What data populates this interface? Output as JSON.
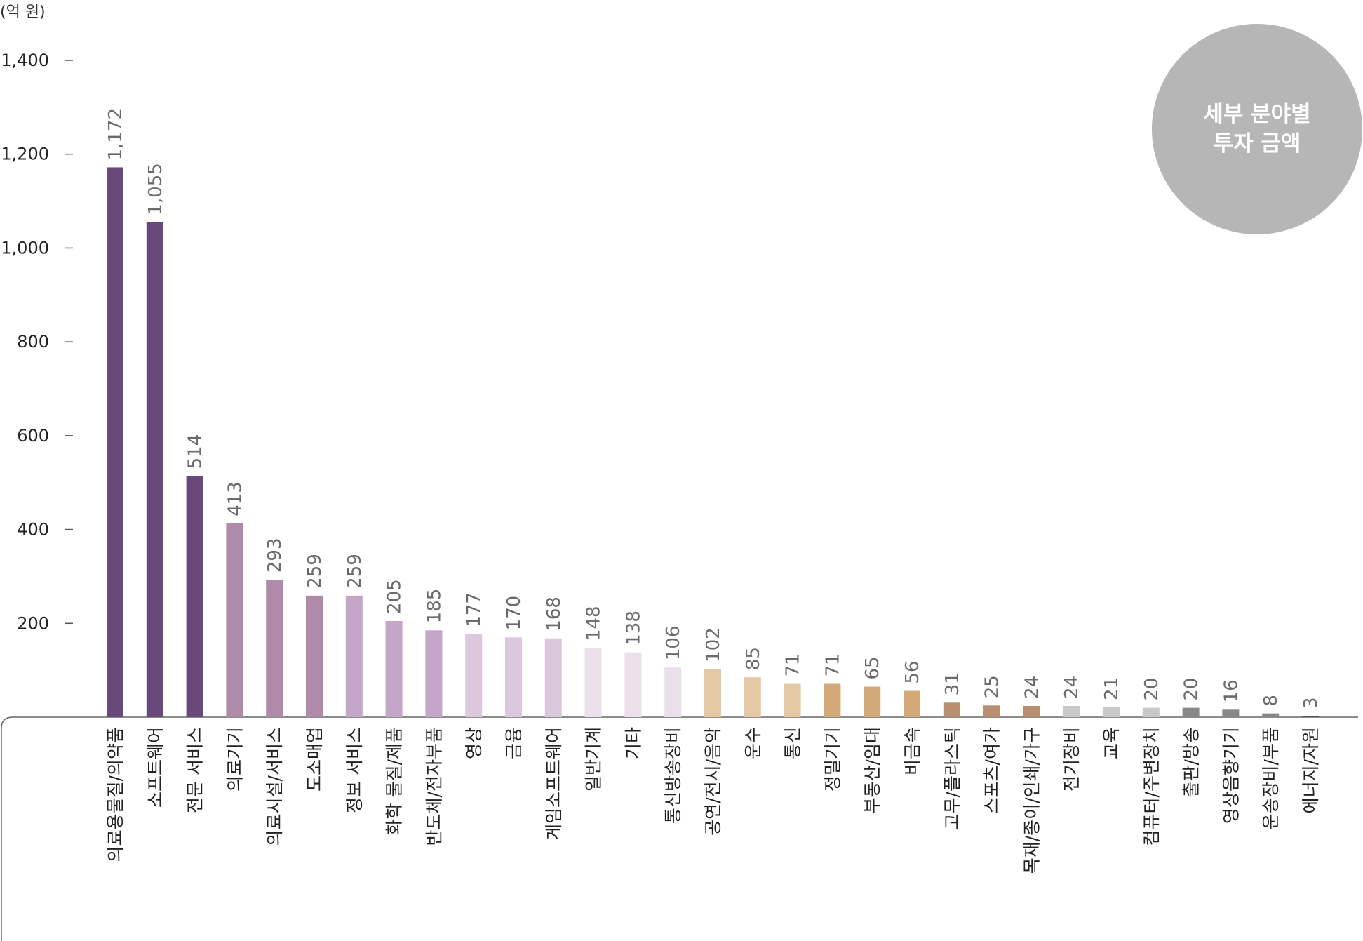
{
  "badge": {
    "line1": "세부 분야별",
    "line2": "투자 금액",
    "color": "#b5b6b5"
  },
  "chart_data": {
    "type": "bar",
    "title": "",
    "unit_label": "(억 원)",
    "xlabel": "",
    "ylabel": "",
    "ylim": [
      0,
      1400
    ],
    "yticks": [
      200,
      400,
      600,
      800,
      1000,
      1200,
      1400
    ],
    "ytick_labels": [
      "200",
      "400",
      "600",
      "800",
      "1,000",
      "1,200",
      "1,400"
    ],
    "grid": false,
    "categories": [
      "의료용물질/의약품",
      "소프트웨어",
      "전문 서비스",
      "의료기기",
      "의료시설/서비스",
      "도소매업",
      "정보 서비스",
      "화학 물질/제품",
      "반도체/전자부품",
      "영상",
      "금융",
      "게임소프트웨어",
      "일반기계",
      "기타",
      "통신방송장비",
      "공연/전시/음악",
      "운수",
      "통신",
      "정밀기기",
      "부동산/임대",
      "비금속",
      "고무/플라스틱",
      "스포츠/여가",
      "목재/종이/인쇄/가구",
      "전기장비",
      "교육",
      "컴퓨터/주변장치",
      "출판/방송",
      "영상음향기기",
      "운송장비/부품",
      "에너지/자원"
    ],
    "values": [
      1172,
      1055,
      514,
      413,
      293,
      259,
      259,
      205,
      185,
      177,
      170,
      168,
      148,
      138,
      106,
      102,
      85,
      71,
      71,
      65,
      56,
      31,
      25,
      24,
      24,
      21,
      20,
      20,
      16,
      8,
      3
    ],
    "value_labels": [
      "1,172",
      "1,055",
      "514",
      "413",
      "293",
      "259",
      "259",
      "205",
      "185",
      "177",
      "170",
      "168",
      "148",
      "138",
      "106",
      "102",
      "85",
      "71",
      "71",
      "65",
      "56",
      "31",
      "25",
      "24",
      "24",
      "21",
      "20",
      "20",
      "16",
      "8",
      "3"
    ],
    "colors": [
      "#674879",
      "#674879",
      "#674879",
      "#b08ba9",
      "#b08ba9",
      "#b08ba9",
      "#c6a6c8",
      "#c6a6c8",
      "#c6a6c8",
      "#dcc8dd",
      "#dcc8dd",
      "#dcc8dd",
      "#ebdfeb",
      "#ebdfeb",
      "#ebdfeb",
      "#e4c7a3",
      "#e4c7a3",
      "#e4c7a3",
      "#d4a979",
      "#d4a979",
      "#d4a979",
      "#b98e71",
      "#b98e71",
      "#b98e71",
      "#c8c8c8",
      "#c8c8c8",
      "#c8c8c8",
      "#888888",
      "#888888",
      "#888888",
      "#555555"
    ]
  }
}
